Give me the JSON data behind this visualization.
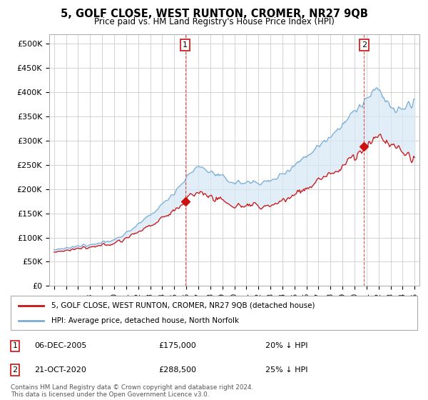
{
  "title": "5, GOLF CLOSE, WEST RUNTON, CROMER, NR27 9QB",
  "subtitle": "Price paid vs. HM Land Registry's House Price Index (HPI)",
  "hpi_label": "HPI: Average price, detached house, North Norfolk",
  "price_label": "5, GOLF CLOSE, WEST RUNTON, CROMER, NR27 9QB (detached house)",
  "hpi_color": "#7aadd4",
  "hpi_fill": "#d6e8f5",
  "price_color": "#cc1111",
  "annotation1": {
    "x_year": 2005.92,
    "y": 175000,
    "label": "1",
    "date": "06-DEC-2005",
    "price": "£175,000",
    "hpi_pct": "20% ↓ HPI"
  },
  "annotation2": {
    "x_year": 2020.8,
    "y": 288500,
    "label": "2",
    "date": "21-OCT-2020",
    "price": "£288,500",
    "hpi_pct": "25% ↓ HPI"
  },
  "ylim": [
    0,
    520000
  ],
  "xlim_start": 1994.6,
  "xlim_end": 2025.4,
  "yticks": [
    0,
    50000,
    100000,
    150000,
    200000,
    250000,
    300000,
    350000,
    400000,
    450000,
    500000
  ],
  "ytick_labels": [
    "£0",
    "£50K",
    "£100K",
    "£150K",
    "£200K",
    "£250K",
    "£300K",
    "£350K",
    "£400K",
    "£450K",
    "£500K"
  ],
  "footer": "Contains HM Land Registry data © Crown copyright and database right 2024.\nThis data is licensed under the Open Government Licence v3.0.",
  "bg_color": "#ffffff",
  "grid_color": "#cccccc"
}
